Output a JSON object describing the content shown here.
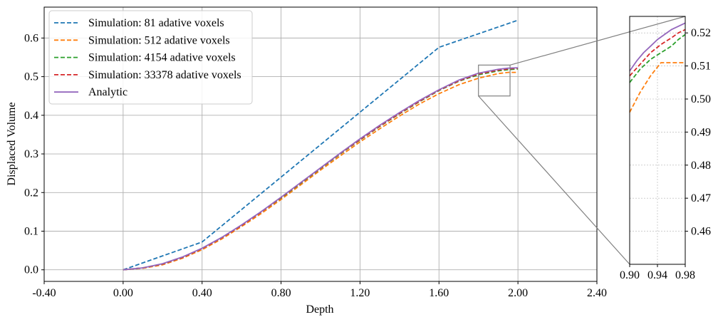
{
  "chart_data": [
    {
      "type": "line",
      "xlabel": "Depth",
      "ylabel": "Displaced Volume",
      "xlim": [
        -0.4,
        2.4
      ],
      "ylim": [
        -0.03,
        0.68
      ],
      "xticks": [
        -0.4,
        0.0,
        0.4,
        0.8,
        1.2,
        1.6,
        2.0,
        2.4
      ],
      "xtick_labels": [
        "-0.40",
        "0.00",
        "0.40",
        "0.80",
        "1.20",
        "1.60",
        "2.00",
        "2.40"
      ],
      "yticks": [
        0.0,
        0.1,
        0.2,
        0.3,
        0.4,
        0.5,
        0.6
      ],
      "ytick_labels": [
        "0.0",
        "0.1",
        "0.2",
        "0.3",
        "0.4",
        "0.5",
        "0.6"
      ],
      "grid": true,
      "legend_position": "top-left",
      "series": [
        {
          "name": "Simulation: 81 adative voxels",
          "color": "#1f77b4",
          "dash": "dashed",
          "x": [
            0.0,
            0.4,
            0.8,
            1.2,
            1.6,
            2.0
          ],
          "y": [
            0.0,
            0.072,
            0.24,
            0.408,
            0.576,
            0.646
          ]
        },
        {
          "name": "Simulation: 512 adative voxels",
          "color": "#ff7f0e",
          "dash": "dashed",
          "x": [
            0.0,
            0.1,
            0.2,
            0.3,
            0.4,
            0.5,
            0.6,
            0.7,
            0.8,
            0.9,
            1.0,
            1.1,
            1.2,
            1.3,
            1.4,
            1.5,
            1.6,
            1.7,
            1.8,
            1.9,
            1.95,
            2.0
          ],
          "y": [
            0.0,
            0.004,
            0.013,
            0.03,
            0.052,
            0.08,
            0.112,
            0.146,
            0.182,
            0.22,
            0.258,
            0.295,
            0.331,
            0.365,
            0.398,
            0.429,
            0.456,
            0.479,
            0.496,
            0.508,
            0.511,
            0.511
          ]
        },
        {
          "name": "Simulation: 4154 adative voxels",
          "color": "#2ca02c",
          "dash": "dashed",
          "x": [
            0.0,
            0.1,
            0.2,
            0.3,
            0.4,
            0.5,
            0.6,
            0.7,
            0.8,
            0.9,
            1.0,
            1.1,
            1.2,
            1.3,
            1.4,
            1.5,
            1.6,
            1.7,
            1.8,
            1.9,
            1.95,
            2.0
          ],
          "y": [
            0.0,
            0.005,
            0.015,
            0.032,
            0.055,
            0.083,
            0.115,
            0.15,
            0.186,
            0.224,
            0.262,
            0.3,
            0.336,
            0.371,
            0.404,
            0.435,
            0.464,
            0.488,
            0.505,
            0.515,
            0.518,
            0.52
          ]
        },
        {
          "name": "Simulation: 33378 adative voxels",
          "color": "#d62728",
          "dash": "dashed",
          "x": [
            0.0,
            0.1,
            0.2,
            0.3,
            0.4,
            0.5,
            0.6,
            0.7,
            0.8,
            0.9,
            1.0,
            1.1,
            1.2,
            1.3,
            1.4,
            1.5,
            1.6,
            1.7,
            1.8,
            1.9,
            1.95,
            2.0
          ],
          "y": [
            0.0,
            0.005,
            0.015,
            0.032,
            0.055,
            0.083,
            0.115,
            0.15,
            0.187,
            0.225,
            0.263,
            0.301,
            0.337,
            0.372,
            0.405,
            0.436,
            0.465,
            0.489,
            0.507,
            0.517,
            0.52,
            0.522
          ]
        },
        {
          "name": "Analytic",
          "color": "#9467bd",
          "dash": "solid",
          "x": [
            0.0,
            0.1,
            0.2,
            0.3,
            0.4,
            0.5,
            0.6,
            0.7,
            0.8,
            0.9,
            1.0,
            1.1,
            1.2,
            1.3,
            1.4,
            1.5,
            1.6,
            1.7,
            1.8,
            1.9,
            1.95,
            2.0
          ],
          "y": [
            0.0,
            0.005,
            0.016,
            0.033,
            0.056,
            0.084,
            0.116,
            0.151,
            0.188,
            0.226,
            0.264,
            0.302,
            0.339,
            0.374,
            0.407,
            0.438,
            0.466,
            0.491,
            0.509,
            0.519,
            0.522,
            0.523
          ]
        }
      ],
      "zoom_box": {
        "x": [
          1.8,
          1.96
        ],
        "y": [
          0.45,
          0.53
        ]
      }
    },
    {
      "type": "line",
      "title": "",
      "xlim": [
        0.9,
        0.98
      ],
      "ylim": [
        0.45,
        0.525
      ],
      "xticks": [
        0.9,
        0.94,
        0.98
      ],
      "xtick_labels": [
        "0.90",
        "0.94",
        "0.98"
      ],
      "yticks": [
        0.46,
        0.47,
        0.48,
        0.49,
        0.5,
        0.51,
        0.52
      ],
      "ytick_labels": [
        "0.46",
        "0.47",
        "0.48",
        "0.49",
        "0.50",
        "0.51",
        "0.52"
      ],
      "grid": true,
      "series": [
        {
          "name": "Simulation: 512 adative voxels",
          "color": "#ff7f0e",
          "dash": "dashed",
          "x": [
            0.9,
            0.915,
            0.93,
            0.945,
            0.96,
            0.98
          ],
          "y": [
            0.496,
            0.502,
            0.507,
            0.511,
            0.511,
            0.511
          ]
        },
        {
          "name": "Simulation: 4154 adative voxels",
          "color": "#2ca02c",
          "dash": "dashed",
          "x": [
            0.9,
            0.915,
            0.93,
            0.945,
            0.96,
            0.97,
            0.98
          ],
          "y": [
            0.505,
            0.509,
            0.512,
            0.514,
            0.516,
            0.518,
            0.5195
          ]
        },
        {
          "name": "Simulation: 33378 adative voxels",
          "color": "#d62728",
          "dash": "dashed",
          "x": [
            0.9,
            0.915,
            0.93,
            0.945,
            0.96,
            0.97,
            0.98
          ],
          "y": [
            0.507,
            0.5105,
            0.514,
            0.5165,
            0.5185,
            0.52,
            0.521
          ]
        },
        {
          "name": "Analytic",
          "color": "#9467bd",
          "dash": "solid",
          "x": [
            0.9,
            0.91,
            0.92,
            0.93,
            0.94,
            0.95,
            0.96,
            0.97,
            0.98
          ],
          "y": [
            0.5085,
            0.5115,
            0.514,
            0.516,
            0.518,
            0.5195,
            0.521,
            0.522,
            0.523
          ]
        }
      ]
    }
  ]
}
